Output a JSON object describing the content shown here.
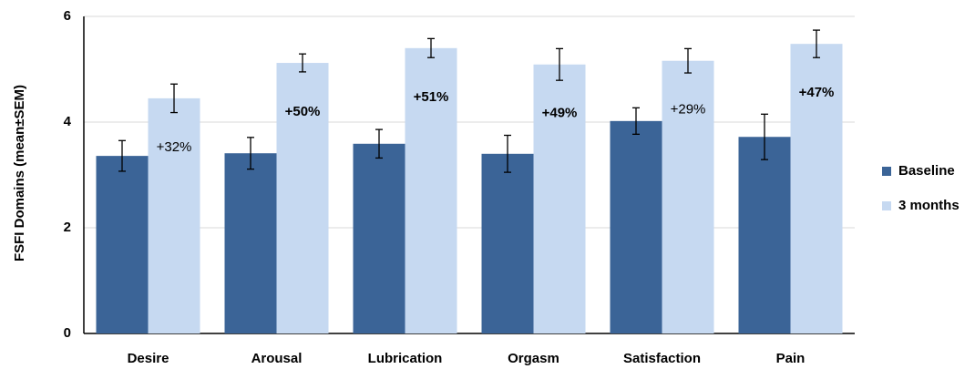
{
  "chart_data": {
    "type": "bar",
    "ylabel": "FSFI Domains (mean±SEM)",
    "categories": [
      "Desire",
      "Arousal",
      "Lubrication",
      "Orgasm",
      "Satisfaction",
      "Pain"
    ],
    "series": [
      {
        "name": "Baseline",
        "color": "#3b6497",
        "values": [
          3.36,
          3.41,
          3.59,
          3.4,
          4.02,
          3.72
        ],
        "errors": [
          0.29,
          0.3,
          0.27,
          0.35,
          0.25,
          0.43
        ]
      },
      {
        "name": "3 months",
        "color": "#c6d9f1",
        "values": [
          4.45,
          5.12,
          5.4,
          5.09,
          5.16,
          5.48
        ],
        "errors": [
          0.27,
          0.17,
          0.18,
          0.3,
          0.23,
          0.26
        ]
      }
    ],
    "annotations": [
      {
        "text": "+32%",
        "bold": false
      },
      {
        "text": "+50%",
        "bold": true
      },
      {
        "text": "+51%",
        "bold": true
      },
      {
        "text": "+49%",
        "bold": true
      },
      {
        "text": "+29%",
        "bold": false
      },
      {
        "text": "+47%",
        "bold": true
      }
    ],
    "ylim": [
      0,
      6
    ],
    "yticks": [
      0,
      2,
      4,
      6
    ],
    "grid": true,
    "legend": "right"
  }
}
